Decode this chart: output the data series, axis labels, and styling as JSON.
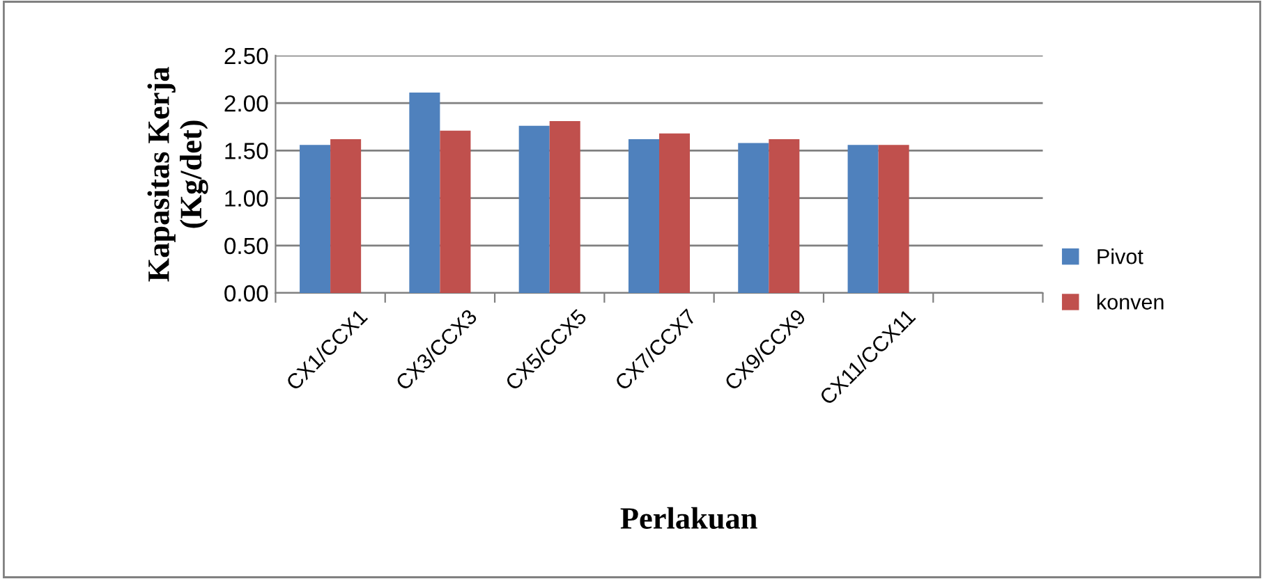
{
  "chart_data": {
    "type": "bar",
    "xlabel": "Perlakuan",
    "ylabel": "Kapasitas Kerja\n(Kg/det)",
    "categories": [
      "CX1/CCX1",
      "CX3/CCX3",
      "CX5/CCX5",
      "CX7/CCX7",
      "CX9/CCX9",
      "CX11/CCX11",
      null
    ],
    "series": [
      {
        "name": "Pivot",
        "color": "#4f81bd",
        "values": [
          1.56,
          2.11,
          1.76,
          1.62,
          1.58,
          1.56,
          null
        ]
      },
      {
        "name": "konven",
        "color": "#c0504d",
        "values": [
          1.62,
          1.71,
          1.81,
          1.68,
          1.62,
          1.56,
          null
        ]
      }
    ],
    "ylim": [
      0,
      2.5
    ],
    "yticks": [
      {
        "value": 0,
        "label": "0.00"
      },
      {
        "value": 0.5,
        "label": "0.50"
      },
      {
        "value": 1,
        "label": "1.00"
      },
      {
        "value": 1.5,
        "label": "1.50"
      },
      {
        "value": 2,
        "label": "2.00"
      },
      {
        "value": 2.5,
        "label": "2.50"
      }
    ],
    "grid": "y",
    "legend": "right"
  }
}
